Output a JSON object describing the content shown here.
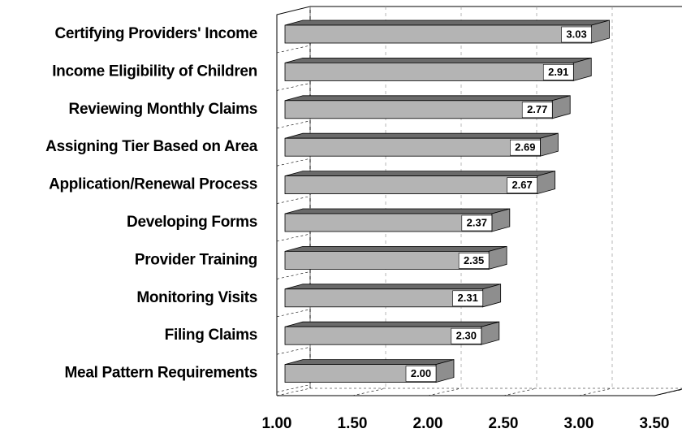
{
  "chart_data": {
    "type": "bar3d",
    "orientation": "horizontal",
    "categories": [
      "Certifying Providers' Income",
      "Income Eligibility of Children",
      "Reviewing Monthly Claims",
      "Assigning Tier Based on Area",
      "Application/Renewal Process",
      "Developing Forms",
      "Provider Training",
      "Monitoring Visits",
      "Filing Claims",
      "Meal Pattern Requirements"
    ],
    "values": [
      3.03,
      2.91,
      2.77,
      2.69,
      2.67,
      2.37,
      2.35,
      2.31,
      2.3,
      2.0
    ],
    "value_labels": [
      "3.03",
      "2.91",
      "2.77",
      "2.69",
      "2.67",
      "2.37",
      "2.35",
      "2.31",
      "2.30",
      "2.00"
    ],
    "color": "#b4b4b4",
    "xlim": [
      1,
      3.5
    ],
    "xticks": [
      {
        "value": 1,
        "label": "1.00"
      },
      {
        "value": 1.5,
        "label": "1.50"
      },
      {
        "value": 2,
        "label": "2.00"
      },
      {
        "value": 2.5,
        "label": "2.50"
      },
      {
        "value": 3,
        "label": "3.00"
      },
      {
        "value": 3.5,
        "label": "3.50"
      }
    ],
    "grid": true
  }
}
